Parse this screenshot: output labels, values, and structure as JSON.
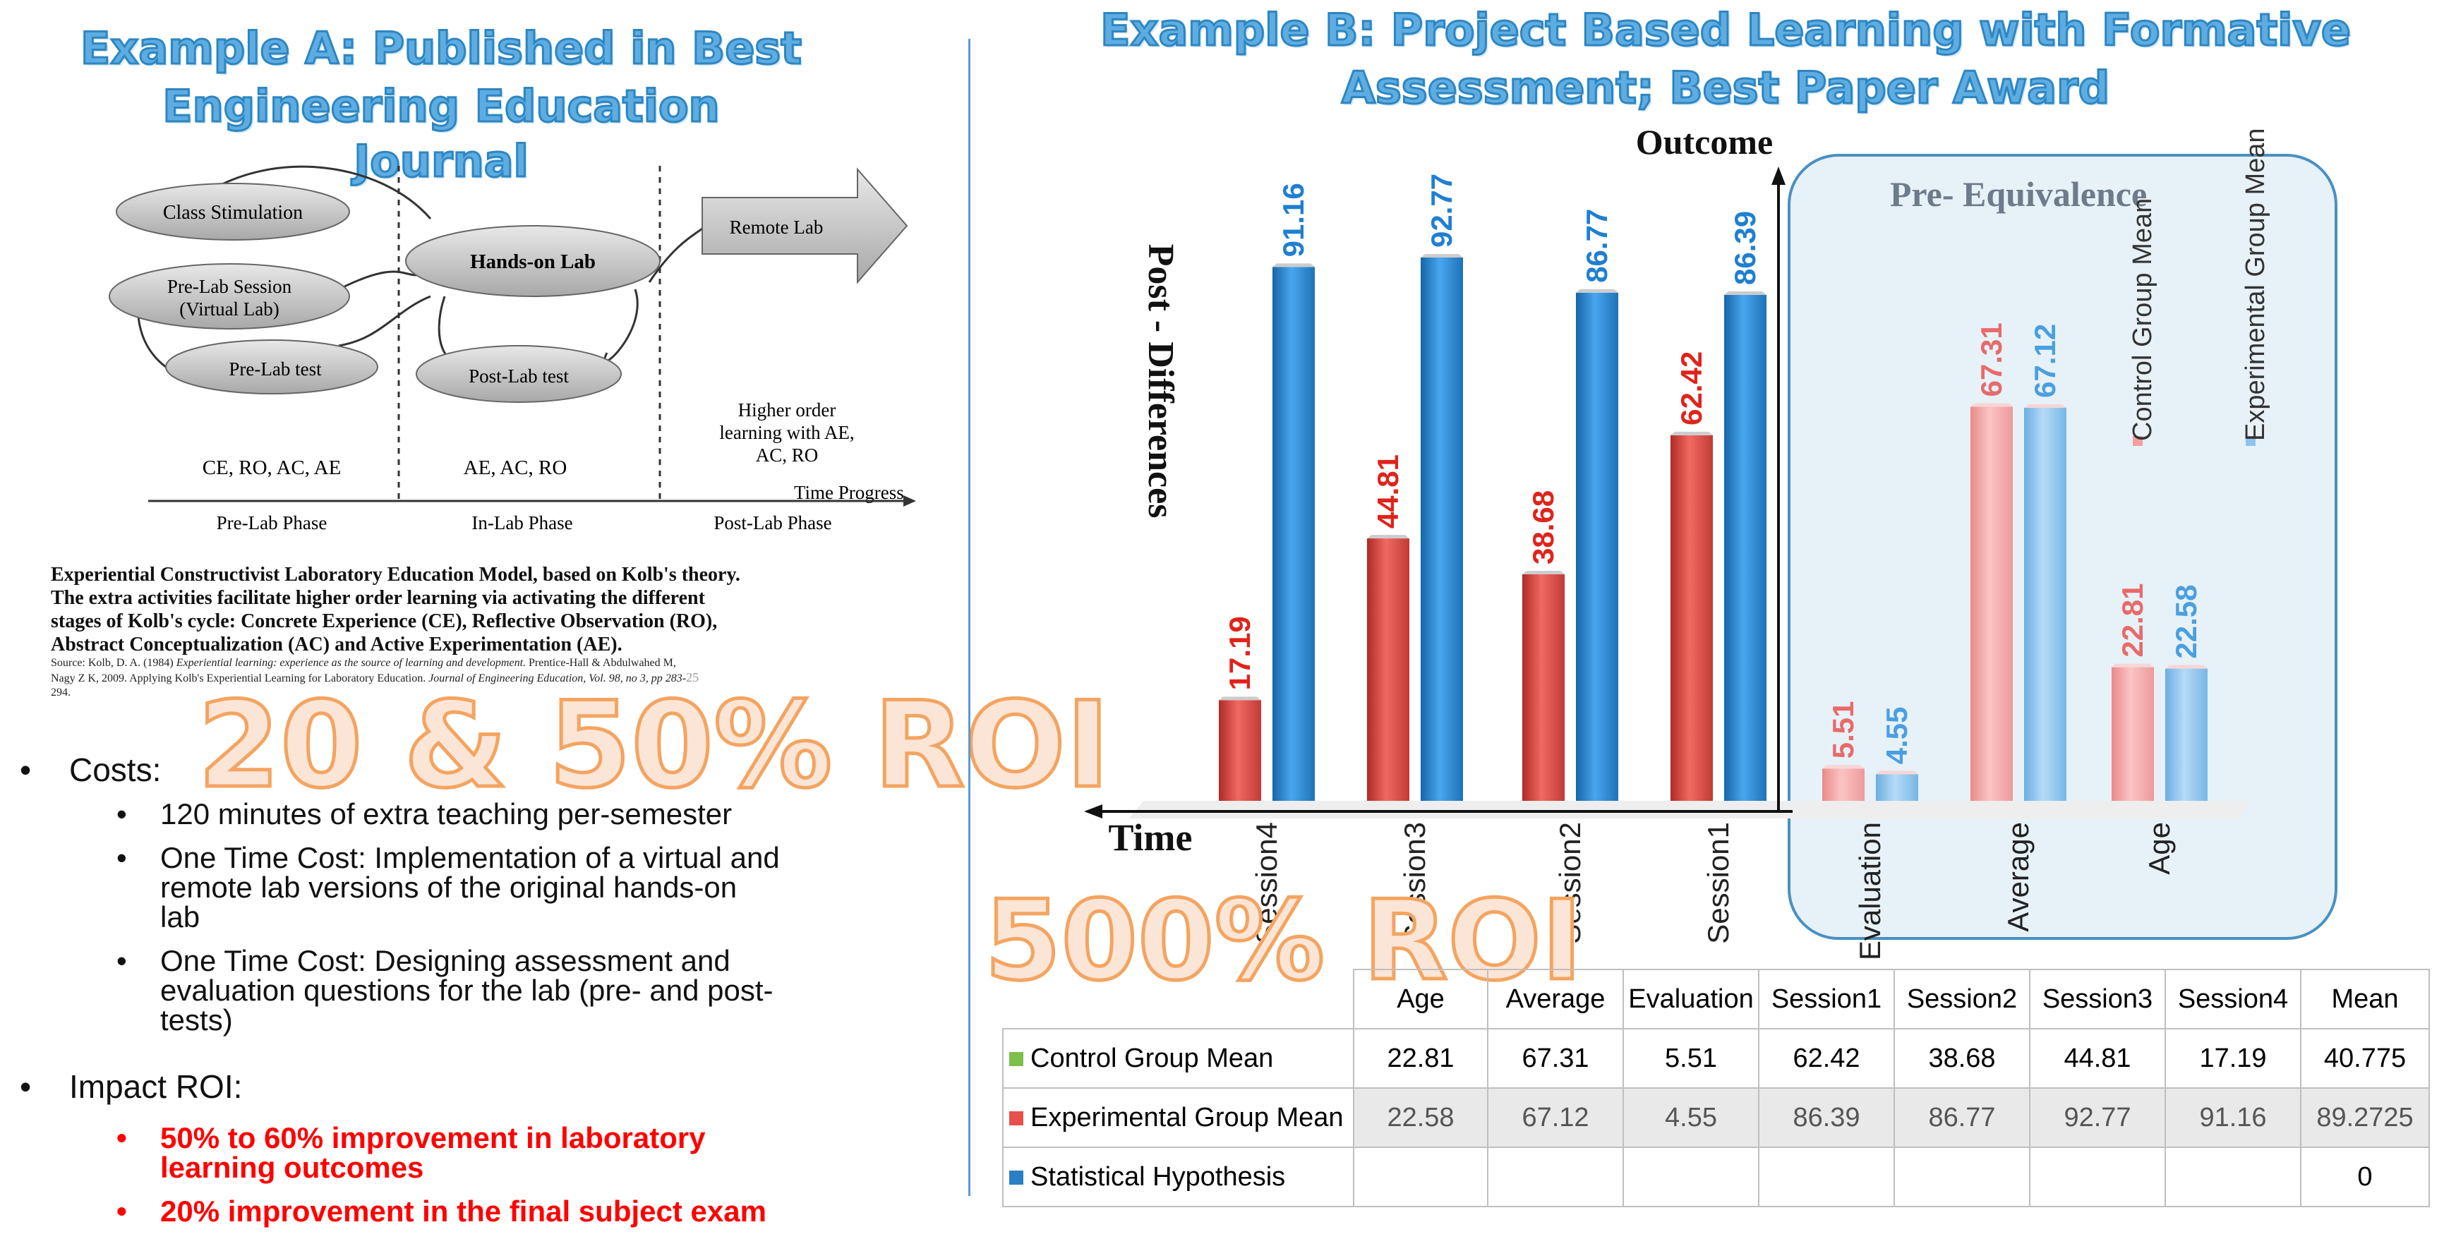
{
  "left": {
    "title_line1": "Example A: Published in Best",
    "title_line2": "Engineering Education Journal",
    "diagram": {
      "nodes": {
        "class_stimulation": "Class Stimulation",
        "pre_lab_session_1": "Pre-Lab Session",
        "pre_lab_session_2": "(Virtual Lab)",
        "pre_lab_test": "Pre-Lab test",
        "hands_on_lab": "Hands-on Lab",
        "post_lab_test": "Post-Lab test",
        "remote_lab": "Remote Lab"
      },
      "higher_order_1": "Higher order",
      "higher_order_2": "learning with AE,",
      "higher_order_3": "AC, RO",
      "stages": [
        "CE, RO, AC, AE",
        "AE, AC, RO"
      ],
      "time_progress": "Time Progress",
      "phases": [
        "Pre-Lab Phase",
        "In-Lab Phase",
        "Post-Lab Phase"
      ]
    },
    "caption": {
      "line1": "Experiential Constructivist Laboratory Education Model, based on Kolb's theory.",
      "line2": "The extra activities facilitate higher order learning via activating the different",
      "line3": "stages of Kolb's cycle: Concrete Experience (CE), Reflective Observation (RO),",
      "line4": "Abstract Conceptualization (AC) and Active Experimentation (AE).",
      "source_prefix": "Source:  Kolb, D. A. (1984) ",
      "source_italic": "Experiential learning: experience as the source of learning and development.",
      "source_rest": " Prentice-Hall & Abdulwahed M,",
      "source2_prefix": "Nagy Z K, 2009. Applying Kolb's Experiential Learning for Laboratory Education. ",
      "source2_italic": "Journal of Engineering Education, Vol. 98, no 3, pp 283-",
      "source3": "294.",
      "page_num": "25"
    },
    "roi_overlay": "20 & 50% ROI",
    "costs_label": "Costs:",
    "costs_items": [
      "120 minutes of extra teaching per-semester",
      "One Time Cost: Implementation of a virtual and",
      "remote lab versions of the original hands-on",
      "lab",
      "One Time Cost: Designing assessment and",
      "evaluation questions for the lab (pre- and post-",
      "tests)"
    ],
    "impact_label": "Impact ROI:",
    "impact_items": [
      "50% to 60% improvement in laboratory",
      "learning outcomes",
      "20% improvement in the final subject exam"
    ]
  },
  "right": {
    "title_line1": "Example B: Project Based Learning with Formative",
    "title_line2": "Assessment; Best Paper Award",
    "roi_overlay": "500% ROI",
    "pre_equivalence": "Pre- Equivalence"
  },
  "colors": {
    "control": "#e8504a",
    "experimental": "#2b8bd6",
    "control_light": "#f4a0a0",
    "experimental_light": "#8ec4ec"
  },
  "chart_data": {
    "type": "bar",
    "ylabel": "Post - Differences",
    "outcome_label": "Outcome",
    "xlabel": "Time",
    "categories": [
      "Session4",
      "Session3",
      "Session2",
      "Session1",
      "Evaluation",
      "Average",
      "Age"
    ],
    "series": [
      {
        "name": "Control Group Mean",
        "values": [
          17.19,
          44.81,
          38.68,
          62.42,
          5.51,
          67.31,
          22.81
        ]
      },
      {
        "name": "Experimental Group Mean",
        "values": [
          91.16,
          92.77,
          86.77,
          86.39,
          4.55,
          67.12,
          22.58
        ]
      }
    ],
    "ylim": [
      0,
      100
    ]
  },
  "table": {
    "headers": [
      "Age",
      "Average",
      "Evaluation",
      "Session1",
      "Session2",
      "Session3",
      "Session4",
      "Mean"
    ],
    "rows": [
      {
        "label": "Control Group Mean",
        "cells": [
          "22.81",
          "67.31",
          "5.51",
          "62.42",
          "38.68",
          "44.81",
          "17.19",
          "40.775"
        ]
      },
      {
        "label": "Experimental Group Mean",
        "cells": [
          "22.58",
          "67.12",
          "4.55",
          "86.39",
          "86.77",
          "92.77",
          "91.16",
          "89.2725"
        ]
      },
      {
        "label": "Statistical Hypothesis",
        "cells": [
          "",
          "",
          "",
          "",
          "",
          "",
          "",
          "0"
        ]
      }
    ]
  }
}
